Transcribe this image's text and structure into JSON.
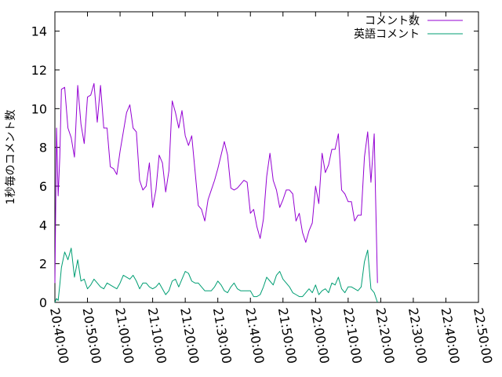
{
  "chart_data": {
    "type": "line",
    "title": "",
    "xlabel": "",
    "ylabel": "1秒毎のコメント数",
    "xlim": [
      "20:40:00",
      "22:50:00"
    ],
    "ylim": [
      0,
      15
    ],
    "x_ticks": [
      "20:40:00",
      "20:50:00",
      "21:00:00",
      "21:10:00",
      "21:20:00",
      "21:30:00",
      "21:40:00",
      "21:50:00",
      "22:00:00",
      "22:10:00",
      "22:20:00",
      "22:30:00",
      "22:40:00",
      "22:50:00"
    ],
    "y_ticks": [
      0,
      2,
      4,
      6,
      8,
      10,
      12,
      14
    ],
    "grid": false,
    "legend_position": "top-right",
    "series": [
      {
        "name": "コメント数",
        "color": "#9400d3",
        "points": [
          [
            "20:40:00",
            1
          ],
          [
            "20:40:30",
            9
          ],
          [
            "20:41:00",
            5.5
          ],
          [
            "20:41:30",
            7.5
          ],
          [
            "20:42:00",
            11
          ],
          [
            "20:43:00",
            11.1
          ],
          [
            "20:44:00",
            9
          ],
          [
            "20:45:00",
            8.5
          ],
          [
            "20:46:00",
            7.5
          ],
          [
            "20:47:00",
            11.2
          ],
          [
            "20:48:00",
            9.2
          ],
          [
            "20:49:00",
            8.2
          ],
          [
            "20:50:00",
            10.6
          ],
          [
            "20:51:00",
            10.7
          ],
          [
            "20:52:00",
            11.3
          ],
          [
            "20:53:00",
            9.3
          ],
          [
            "20:54:00",
            11.2
          ],
          [
            "20:55:00",
            9
          ],
          [
            "20:56:00",
            9
          ],
          [
            "20:57:00",
            7
          ],
          [
            "20:58:00",
            6.9
          ],
          [
            "20:59:00",
            6.6
          ],
          [
            "21:00:00",
            7.8
          ],
          [
            "21:01:00",
            8.8
          ],
          [
            "21:02:00",
            9.8
          ],
          [
            "21:03:00",
            10.2
          ],
          [
            "21:04:00",
            9
          ],
          [
            "21:05:00",
            8.8
          ],
          [
            "21:06:00",
            6.3
          ],
          [
            "21:07:00",
            5.8
          ],
          [
            "21:08:00",
            6
          ],
          [
            "21:09:00",
            7.2
          ],
          [
            "21:10:00",
            4.9
          ],
          [
            "21:11:00",
            5.8
          ],
          [
            "21:12:00",
            7.6
          ],
          [
            "21:13:00",
            7.2
          ],
          [
            "21:14:00",
            5.7
          ],
          [
            "21:15:00",
            6.8
          ],
          [
            "21:16:00",
            10.4
          ],
          [
            "21:17:00",
            9.8
          ],
          [
            "21:18:00",
            9
          ],
          [
            "21:19:00",
            9.9
          ],
          [
            "21:20:00",
            8.6
          ],
          [
            "21:21:00",
            8.1
          ],
          [
            "21:22:00",
            8.6
          ],
          [
            "21:23:00",
            6.8
          ],
          [
            "21:24:00",
            5
          ],
          [
            "21:25:00",
            4.8
          ],
          [
            "21:26:00",
            4.2
          ],
          [
            "21:27:00",
            5.3
          ],
          [
            "21:28:00",
            5.8
          ],
          [
            "21:29:00",
            6.3
          ],
          [
            "21:30:00",
            6.9
          ],
          [
            "21:31:00",
            7.6
          ],
          [
            "21:32:00",
            8.3
          ],
          [
            "21:33:00",
            7.6
          ],
          [
            "21:34:00",
            5.9
          ],
          [
            "21:35:00",
            5.8
          ],
          [
            "21:36:00",
            5.9
          ],
          [
            "21:37:00",
            6.1
          ],
          [
            "21:38:00",
            6.3
          ],
          [
            "21:39:00",
            6.2
          ],
          [
            "21:40:00",
            4.6
          ],
          [
            "21:41:00",
            4.8
          ],
          [
            "21:42:00",
            3.9
          ],
          [
            "21:43:00",
            3.3
          ],
          [
            "21:44:00",
            4.3
          ],
          [
            "21:45:00",
            6.5
          ],
          [
            "21:46:00",
            7.7
          ],
          [
            "21:47:00",
            6.3
          ],
          [
            "21:48:00",
            5.8
          ],
          [
            "21:49:00",
            4.9
          ],
          [
            "21:50:00",
            5.3
          ],
          [
            "21:51:00",
            5.8
          ],
          [
            "21:52:00",
            5.8
          ],
          [
            "21:53:00",
            5.6
          ],
          [
            "21:54:00",
            4.2
          ],
          [
            "21:55:00",
            4.6
          ],
          [
            "21:56:00",
            3.6
          ],
          [
            "21:57:00",
            3.1
          ],
          [
            "21:58:00",
            3.7
          ],
          [
            "21:59:00",
            4.1
          ],
          [
            "22:00:00",
            6
          ],
          [
            "22:01:00",
            5.1
          ],
          [
            "22:02:00",
            7.7
          ],
          [
            "22:03:00",
            6.7
          ],
          [
            "22:04:00",
            7.1
          ],
          [
            "22:05:00",
            7.9
          ],
          [
            "22:06:00",
            7.9
          ],
          [
            "22:07:00",
            8.7
          ],
          [
            "22:08:00",
            5.8
          ],
          [
            "22:09:00",
            5.6
          ],
          [
            "22:10:00",
            5.2
          ],
          [
            "22:11:00",
            5.2
          ],
          [
            "22:12:00",
            4.2
          ],
          [
            "22:13:00",
            4.5
          ],
          [
            "22:14:00",
            4.5
          ],
          [
            "22:15:00",
            7.5
          ],
          [
            "22:16:00",
            8.8
          ],
          [
            "22:17:00",
            6.2
          ],
          [
            "22:18:00",
            8.7
          ],
          [
            "22:19:00",
            1
          ]
        ]
      },
      {
        "name": "英語コメント",
        "color": "#009e73",
        "points": [
          [
            "20:40:00",
            0
          ],
          [
            "20:40:30",
            0.2
          ],
          [
            "20:41:00",
            0.1
          ],
          [
            "20:41:30",
            0.9
          ],
          [
            "20:42:00",
            1.8
          ],
          [
            "20:43:00",
            2.6
          ],
          [
            "20:44:00",
            2.2
          ],
          [
            "20:45:00",
            2.8
          ],
          [
            "20:46:00",
            1.3
          ],
          [
            "20:47:00",
            2.2
          ],
          [
            "20:48:00",
            1.1
          ],
          [
            "20:49:00",
            1.2
          ],
          [
            "20:50:00",
            0.7
          ],
          [
            "20:51:00",
            0.9
          ],
          [
            "20:52:00",
            1.2
          ],
          [
            "20:53:00",
            1
          ],
          [
            "20:54:00",
            0.8
          ],
          [
            "20:55:00",
            0.7
          ],
          [
            "20:56:00",
            1
          ],
          [
            "20:57:00",
            0.9
          ],
          [
            "20:58:00",
            0.8
          ],
          [
            "20:59:00",
            0.7
          ],
          [
            "21:00:00",
            1
          ],
          [
            "21:01:00",
            1.4
          ],
          [
            "21:02:00",
            1.3
          ],
          [
            "21:03:00",
            1.2
          ],
          [
            "21:04:00",
            1.4
          ],
          [
            "21:05:00",
            1.1
          ],
          [
            "21:06:00",
            0.7
          ],
          [
            "21:07:00",
            1
          ],
          [
            "21:08:00",
            1
          ],
          [
            "21:09:00",
            0.8
          ],
          [
            "21:10:00",
            0.7
          ],
          [
            "21:11:00",
            0.8
          ],
          [
            "21:12:00",
            1
          ],
          [
            "21:13:00",
            0.7
          ],
          [
            "21:14:00",
            0.4
          ],
          [
            "21:15:00",
            0.6
          ],
          [
            "21:16:00",
            1.1
          ],
          [
            "21:17:00",
            1.2
          ],
          [
            "21:18:00",
            0.8
          ],
          [
            "21:19:00",
            1.2
          ],
          [
            "21:20:00",
            1.6
          ],
          [
            "21:21:00",
            1.5
          ],
          [
            "21:22:00",
            1.1
          ],
          [
            "21:23:00",
            1
          ],
          [
            "21:24:00",
            1
          ],
          [
            "21:25:00",
            0.8
          ],
          [
            "21:26:00",
            0.6
          ],
          [
            "21:27:00",
            0.6
          ],
          [
            "21:28:00",
            0.6
          ],
          [
            "21:29:00",
            0.8
          ],
          [
            "21:30:00",
            1.1
          ],
          [
            "21:31:00",
            0.9
          ],
          [
            "21:32:00",
            0.6
          ],
          [
            "21:33:00",
            0.5
          ],
          [
            "21:34:00",
            0.8
          ],
          [
            "21:35:00",
            1
          ],
          [
            "21:36:00",
            0.7
          ],
          [
            "21:37:00",
            0.6
          ],
          [
            "21:38:00",
            0.6
          ],
          [
            "21:39:00",
            0.6
          ],
          [
            "21:40:00",
            0.6
          ],
          [
            "21:41:00",
            0.3
          ],
          [
            "21:42:00",
            0.3
          ],
          [
            "21:43:00",
            0.4
          ],
          [
            "21:44:00",
            0.8
          ],
          [
            "21:45:00",
            1.3
          ],
          [
            "21:46:00",
            1.1
          ],
          [
            "21:47:00",
            0.9
          ],
          [
            "21:48:00",
            1.4
          ],
          [
            "21:49:00",
            1.6
          ],
          [
            "21:50:00",
            1.2
          ],
          [
            "21:51:00",
            1
          ],
          [
            "21:52:00",
            0.8
          ],
          [
            "21:53:00",
            0.5
          ],
          [
            "21:54:00",
            0.4
          ],
          [
            "21:55:00",
            0.3
          ],
          [
            "21:56:00",
            0.3
          ],
          [
            "21:57:00",
            0.5
          ],
          [
            "21:58:00",
            0.7
          ],
          [
            "21:59:00",
            0.5
          ],
          [
            "22:00:00",
            0.9
          ],
          [
            "22:01:00",
            0.4
          ],
          [
            "22:02:00",
            0.6
          ],
          [
            "22:03:00",
            0.7
          ],
          [
            "22:04:00",
            0.5
          ],
          [
            "22:05:00",
            1
          ],
          [
            "22:06:00",
            0.9
          ],
          [
            "22:07:00",
            1.3
          ],
          [
            "22:08:00",
            0.7
          ],
          [
            "22:09:00",
            0.5
          ],
          [
            "22:10:00",
            0.8
          ],
          [
            "22:11:00",
            0.8
          ],
          [
            "22:12:00",
            0.7
          ],
          [
            "22:13:00",
            0.6
          ],
          [
            "22:14:00",
            0.8
          ],
          [
            "22:15:00",
            2.1
          ],
          [
            "22:16:00",
            2.7
          ],
          [
            "22:17:00",
            0.7
          ],
          [
            "22:18:00",
            0.5
          ],
          [
            "22:19:00",
            0
          ]
        ]
      }
    ]
  }
}
